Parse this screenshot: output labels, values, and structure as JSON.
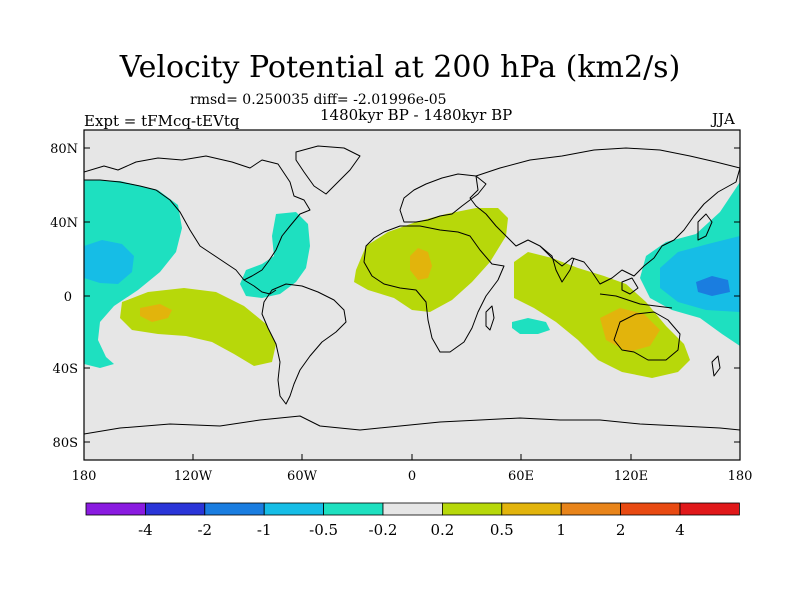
{
  "map": {
    "title": "Velocity Potential at 200 hPa (km2/s)",
    "stats": "rmsd= 0.250035 diff= -2.01996e-05",
    "period": "1480kyr BP - 1480kyr BP",
    "experiment": "Expt = tFMcq-tEVtq",
    "season": "JJA",
    "lat_ticks": [
      "80N",
      "40N",
      "0",
      "40S",
      "80S"
    ],
    "lon_ticks": [
      "180",
      "120W",
      "60W",
      "0",
      "60E",
      "120E",
      "180"
    ]
  },
  "colorbar": {
    "colors": [
      "#8a1be0",
      "#2a35d8",
      "#1a7de0",
      "#16bde6",
      "#1ee0c0",
      "#e6e6e6",
      "#b7d80a",
      "#e2b40c",
      "#e8841a",
      "#e84a12",
      "#e0181a"
    ],
    "labels": [
      "-4",
      "-2",
      "-1",
      "-0.5",
      "-0.2",
      "0.2",
      "0.5",
      "1",
      "2",
      "4"
    ]
  }
}
